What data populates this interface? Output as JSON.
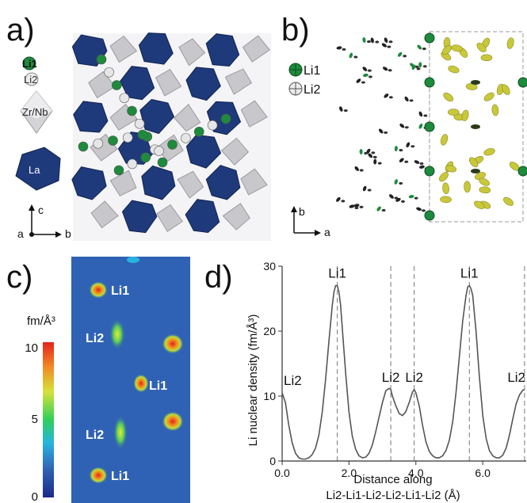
{
  "panels": {
    "a": {
      "label": "a)",
      "legend": {
        "li1": "Li1",
        "li2": "Li2",
        "zrnb": "Zr/Nb",
        "la": "La"
      },
      "axes": {
        "c": "c",
        "a": "a",
        "b": "b"
      },
      "colors": {
        "la": "#1f3a7a",
        "zrnb": "#c8c8cc",
        "li1": "#1e8a3c",
        "li2": "#e6e6e6"
      }
    },
    "b": {
      "label": "b)",
      "legend": {
        "li1": "Li1",
        "li2": "Li2"
      },
      "axes": {
        "b": "b",
        "a": "a"
      },
      "colors": {
        "li1": "#1e8a3c",
        "density": "#c9c83a"
      }
    },
    "c": {
      "label": "c)",
      "colorbar": {
        "unit": "fm/Å³",
        "ticks": [
          "10",
          "5",
          "0"
        ],
        "range": [
          0,
          10
        ]
      },
      "site_labels": [
        "Li1",
        "Li2",
        "Li1",
        "Li2",
        "Li1"
      ],
      "colors": {
        "background": "#2f62b4"
      }
    },
    "d": {
      "label": "d)"
    }
  },
  "chart_data": {
    "type": "line",
    "xlabel": "Distance along\nLi2-Li1-Li2-Li2-Li1-Li2 (Å)",
    "ylabel": "Li nuclear density (fm/Å³)",
    "xlim": [
      0.0,
      7.3
    ],
    "ylim": [
      0,
      30
    ],
    "xticks": [
      "0.0",
      "2.0",
      "4.0",
      "6.0"
    ],
    "yticks": [
      "0",
      "10",
      "20",
      "30"
    ],
    "dashed_x": [
      1.65,
      3.25,
      3.95,
      5.6,
      7.25
    ],
    "peak_labels": [
      {
        "text": "Li2",
        "x": 0.0,
        "y": 10.5
      },
      {
        "text": "Li1",
        "x": 1.65,
        "y": 27
      },
      {
        "text": "Li2",
        "x": 3.25,
        "y": 11
      },
      {
        "text": "Li2",
        "x": 3.95,
        "y": 11
      },
      {
        "text": "Li1",
        "x": 5.6,
        "y": 27
      },
      {
        "text": "Li2",
        "x": 7.25,
        "y": 11
      }
    ],
    "x": [
      0.0,
      0.1,
      0.2,
      0.3,
      0.4,
      0.5,
      0.6,
      0.7,
      0.8,
      0.9,
      1.0,
      1.1,
      1.2,
      1.3,
      1.4,
      1.5,
      1.55,
      1.6,
      1.65,
      1.7,
      1.75,
      1.8,
      1.9,
      2.0,
      2.1,
      2.2,
      2.3,
      2.4,
      2.5,
      2.6,
      2.7,
      2.8,
      2.9,
      3.0,
      3.1,
      3.2,
      3.25,
      3.3,
      3.4,
      3.5,
      3.6,
      3.7,
      3.8,
      3.9,
      3.95,
      4.0,
      4.1,
      4.2,
      4.3,
      4.4,
      4.5,
      4.6,
      4.7,
      4.8,
      4.9,
      5.0,
      5.1,
      5.2,
      5.3,
      5.4,
      5.5,
      5.55,
      5.6,
      5.65,
      5.7,
      5.8,
      5.9,
      6.0,
      6.1,
      6.2,
      6.3,
      6.4,
      6.5,
      6.6,
      6.7,
      6.8,
      6.9,
      7.0,
      7.1,
      7.2,
      7.25
    ],
    "y": [
      10.5,
      9.0,
      5.5,
      2.8,
      1.2,
      0.5,
      0.3,
      0.3,
      0.5,
      1.0,
      2.0,
      4.0,
      7.5,
      12.5,
      18.5,
      24.0,
      26.0,
      27.0,
      27.0,
      26.0,
      24.0,
      20.5,
      13.5,
      7.5,
      3.8,
      1.8,
      0.8,
      0.5,
      0.6,
      1.2,
      2.5,
      4.5,
      6.8,
      9.0,
      10.8,
      11.2,
      11.0,
      10.0,
      8.5,
      7.3,
      7.0,
      7.6,
      9.0,
      10.6,
      11.0,
      10.5,
      8.5,
      5.5,
      3.0,
      1.5,
      0.8,
      0.5,
      0.5,
      0.8,
      1.6,
      3.2,
      6.0,
      10.5,
      16.0,
      21.5,
      25.5,
      26.8,
      27.0,
      26.5,
      25.5,
      20.0,
      13.0,
      7.0,
      3.5,
      1.6,
      0.8,
      0.5,
      0.5,
      0.9,
      2.0,
      4.0,
      6.5,
      8.8,
      10.2,
      10.9,
      11.0
    ]
  }
}
